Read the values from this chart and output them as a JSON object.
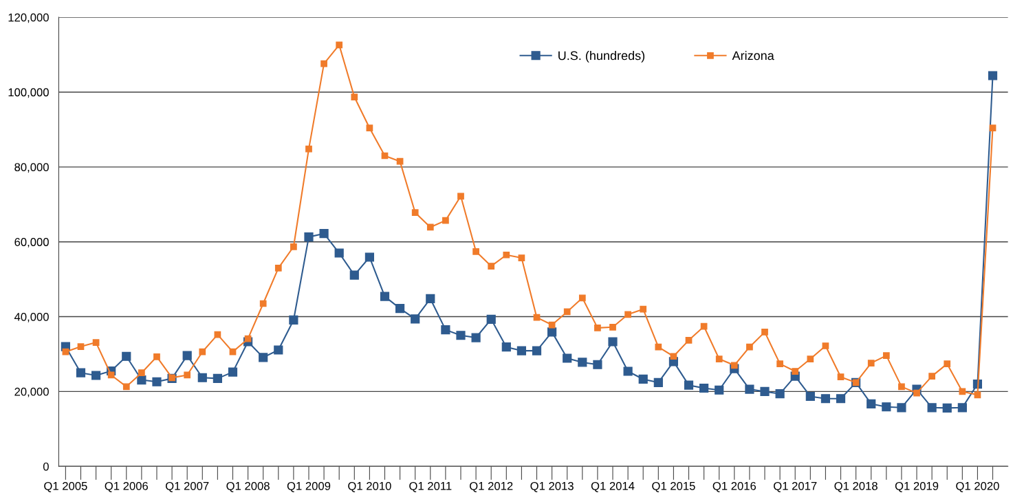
{
  "chart_data": {
    "type": "line",
    "categories": [
      "Q1 2005",
      null,
      null,
      null,
      "Q1 2006",
      null,
      null,
      null,
      "Q1 2007",
      null,
      null,
      null,
      "Q1 2008",
      null,
      null,
      null,
      "Q1 2009",
      null,
      null,
      null,
      "Q1 2010",
      null,
      null,
      null,
      "Q1 2011",
      null,
      null,
      null,
      "Q1 2012",
      null,
      null,
      null,
      "Q1 2013",
      null,
      null,
      null,
      "Q1 2014",
      null,
      null,
      null,
      "Q1 2015",
      null,
      null,
      null,
      "Q1 2016",
      null,
      null,
      null,
      "Q1 2017",
      null,
      null,
      null,
      "Q1 2018",
      null,
      null,
      null,
      "Q1 2019",
      null,
      null,
      null,
      "Q1 2020",
      null
    ],
    "series": [
      {
        "name": "U.S. (hundreds)",
        "color": "#2e5b8f",
        "values": [
          32000,
          25000,
          24300,
          25500,
          29400,
          23100,
          22600,
          23500,
          29600,
          23700,
          23500,
          25200,
          33300,
          29100,
          31100,
          39100,
          61300,
          62200,
          57000,
          51100,
          55900,
          45400,
          42200,
          39400,
          44800,
          36500,
          35000,
          34400,
          39300,
          31900,
          30900,
          30900,
          35900,
          28900,
          27800,
          27200,
          33300,
          25400,
          23300,
          22400,
          28000,
          21700,
          20900,
          20400,
          26100,
          20600,
          20000,
          19400,
          24100,
          18700,
          18100,
          18100,
          22400,
          16700,
          15900,
          15700,
          20600,
          15700,
          15600,
          15700,
          22000,
          104400
        ]
      },
      {
        "name": "Arizona",
        "color": "#f07b2a",
        "values": [
          30600,
          32000,
          33100,
          24400,
          21300,
          25000,
          29300,
          23700,
          24400,
          30600,
          35200,
          30600,
          34100,
          43500,
          53000,
          58700,
          84800,
          107600,
          112600,
          98700,
          90400,
          83000,
          81500,
          67800,
          63900,
          65700,
          72200,
          57400,
          53500,
          56500,
          55700,
          39800,
          37800,
          41300,
          45000,
          37000,
          37200,
          40600,
          42000,
          31900,
          29400,
          33700,
          37400,
          28700,
          27000,
          31900,
          35900,
          27400,
          25400,
          28700,
          32200,
          23900,
          22400,
          27600,
          29600,
          21300,
          19600,
          24100,
          27400,
          20000,
          19100,
          90400
        ]
      }
    ],
    "ylim": [
      0,
      120000
    ],
    "yticks": [
      {
        "value": 0,
        "label": "0"
      },
      {
        "value": 20000,
        "label": "20,000"
      },
      {
        "value": 40000,
        "label": "40,000"
      },
      {
        "value": 60000,
        "label": "60,000"
      },
      {
        "value": 80000,
        "label": "80,000"
      },
      {
        "value": 100000,
        "label": "100,000"
      },
      {
        "value": 120000,
        "label": "120,000"
      }
    ],
    "grid": "y",
    "legend": "top",
    "marker": "square",
    "line_style": "solid"
  }
}
